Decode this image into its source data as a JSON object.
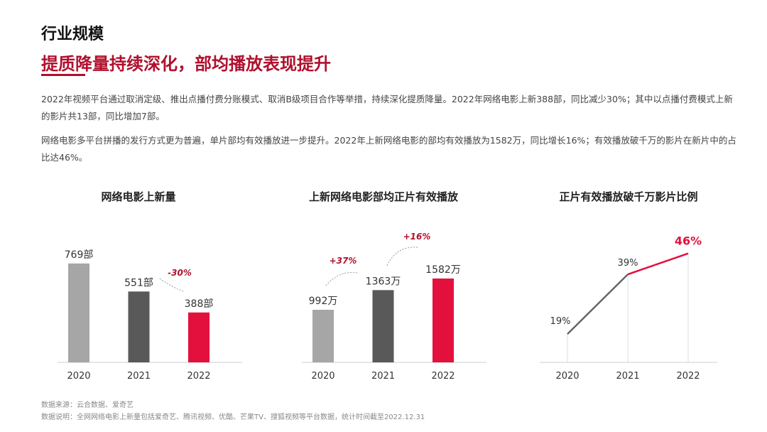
{
  "section_title": "行业规模",
  "headline": "提质降量持续深化，部均播放表现提升",
  "paragraphs": [
    "2022年视频平台通过取消定级、推出点播付费分账模式、取消B级项目合作等举措，持续深化提质降量。2022年网络电影上新388部，同比减少30%；其中以点播付费模式上新的影片共13部，同比增加7部。",
    "网络电影多平台拼播的发行方式更为普遍，单片部均有效播放进一步提升。2022年上新网络电影的部均有效播放为1582万，同比增长16%；有效播放破千万的影片在新片中的占比达46%。"
  ],
  "colors": {
    "gray": "#a6a6a6",
    "dark": "#595959",
    "red": "#e3103d",
    "accent": "#b0102d"
  },
  "chart_data": [
    {
      "type": "bar",
      "title": "网络电影上新量",
      "categories": [
        "2020",
        "2021",
        "2022"
      ],
      "values": [
        769,
        551,
        388
      ],
      "labels": [
        "769部",
        "551部",
        "388部"
      ],
      "annotations": [
        "-30%"
      ]
    },
    {
      "type": "bar",
      "title": "上新网络电影部均正片有效播放",
      "categories": [
        "2020",
        "2021",
        "2022"
      ],
      "values": [
        992,
        1363,
        1582
      ],
      "labels": [
        "992万",
        "1363万",
        "1582万"
      ],
      "annotations": [
        "+37%",
        "+16%"
      ]
    },
    {
      "type": "line",
      "title": "正片有效播放破千万影片比例",
      "categories": [
        "2020",
        "2021",
        "2022"
      ],
      "values": [
        19,
        39,
        46
      ],
      "labels": [
        "19%",
        "39%",
        "46%"
      ]
    }
  ],
  "footer": {
    "source": "数据来源：云合数据、爱奇艺",
    "note": "数据说明：全网网络电影上新量包括爱奇艺、腾讯视频、优酷、芒果TV、搜狐视频等平台数据，统计时间截至2022.12.31"
  }
}
